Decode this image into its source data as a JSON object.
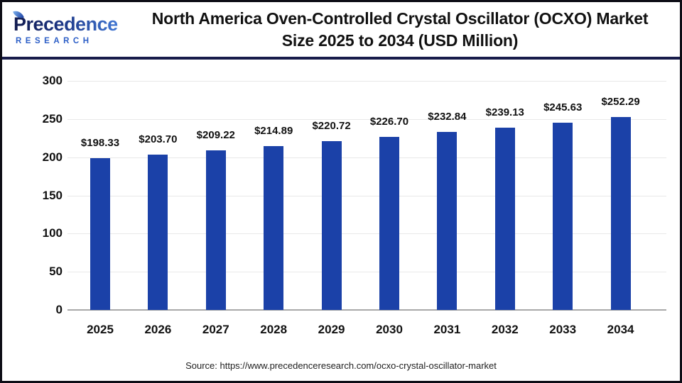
{
  "header": {
    "logo": {
      "line1": "Precedence",
      "line2": "RESEARCH",
      "brand_navy": "#18246b",
      "brand_blue": "#2d5fc7"
    },
    "title_line1": "North America Oven-Controlled Crystal Oscillator (OCXO) Market",
    "title_line2": "Size 2025 to 2034 (USD Million)"
  },
  "chart_data": {
    "type": "bar",
    "title": "North America Oven-Controlled Crystal Oscillator (OCXO) Market Size 2025 to 2034 (USD Million)",
    "categories": [
      "2025",
      "2026",
      "2027",
      "2028",
      "2029",
      "2030",
      "2031",
      "2032",
      "2033",
      "2034"
    ],
    "values": [
      198.33,
      203.7,
      209.22,
      214.89,
      220.72,
      226.7,
      232.84,
      239.13,
      245.63,
      252.29
    ],
    "labels": [
      "$198.33",
      "$203.70",
      "$209.22",
      "$214.89",
      "$220.72",
      "$226.70",
      "$232.84",
      "$239.13",
      "$245.63",
      "$252.29"
    ],
    "unit": "USD Million",
    "xlabel": "",
    "ylabel": "",
    "ylim": [
      0,
      300
    ],
    "yticks": [
      0,
      50,
      100,
      150,
      200,
      250,
      300
    ],
    "grid": true,
    "legend": false,
    "bar_color": "#1b41a8"
  },
  "footer": {
    "source": "Source: https://www.precedenceresearch.com/ocxo-crystal-oscillator-market"
  }
}
